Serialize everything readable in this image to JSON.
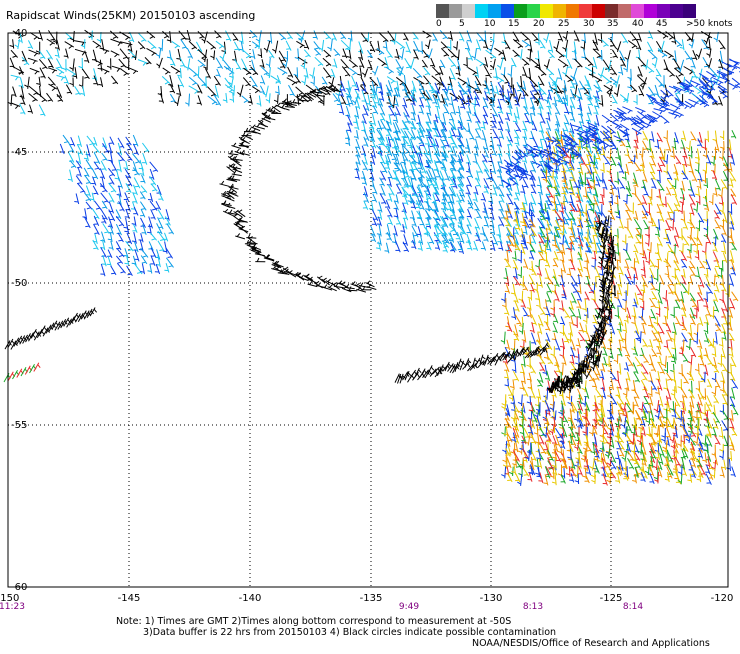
{
  "title": "Rapidscat Winds(25KM) 20150103 ascending",
  "legend": {
    "labels": [
      "0",
      "5",
      "10",
      "15",
      "20",
      "25",
      "30",
      "35",
      "40",
      "45",
      ">50 knots"
    ],
    "colors": [
      "#555555",
      "#9a9a9a",
      "#cfcfcf",
      "#00d2f4",
      "#00a0f0",
      "#0a50e8",
      "#0a9e1c",
      "#2ad44a",
      "#f0e800",
      "#f0b400",
      "#f07800",
      "#f03a3a",
      "#cc0000",
      "#7a2b2b",
      "#c06a6a",
      "#e04ad8",
      "#b000d8",
      "#7a00b8",
      "#4c0090",
      "#3a007a"
    ]
  },
  "axes": {
    "lat_ticks": [
      "-40",
      "-45",
      "-50",
      "-55",
      "-60"
    ],
    "lon_ticks": [
      "-150",
      "-145",
      "-140",
      "-135",
      "-130",
      "-125",
      "-120"
    ]
  },
  "pass_times": [
    "11:23",
    "9:49",
    "8:13",
    "8:14"
  ],
  "notes": [
    "Note: 1) Times are GMT 2)Times along bottom correspond to measurement at -50S",
    "3)Data buffer is 22 hrs from 20150103 4) Black circles indicate possible contamination"
  ],
  "credit": "NOAA/NESDIS/Office of Research and Applications",
  "colors": {
    "black": "#000000",
    "cyan": "#1ec8ee",
    "light_blue": "#0a9be6",
    "blue": "#0a3ee6",
    "green": "#1aa82a",
    "yellow": "#e8c800",
    "orange": "#f09000",
    "red": "#e82a2a",
    "purple_time": "#800080"
  }
}
